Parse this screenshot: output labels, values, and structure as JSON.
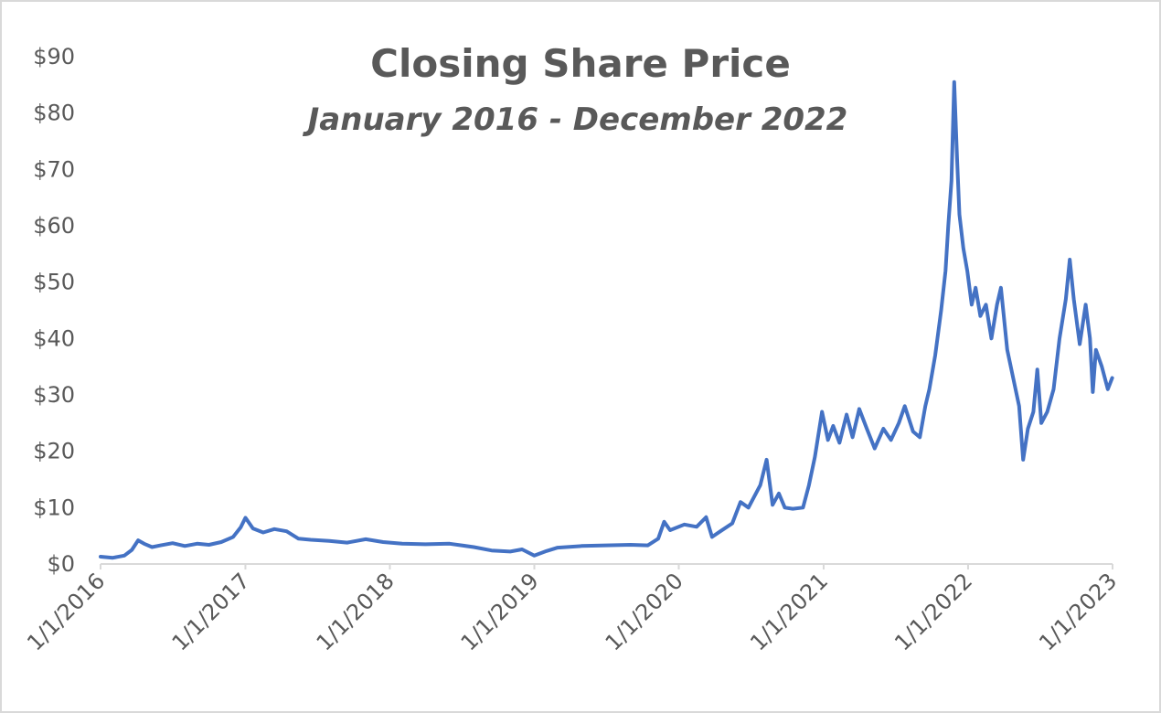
{
  "chart_data": {
    "type": "line",
    "title": "Closing Share Price",
    "subtitle": "January 2016 - December 2022",
    "xlabel": "",
    "ylabel": "",
    "ylim": [
      0,
      90
    ],
    "y_ticks": [
      "$0",
      "$10",
      "$20",
      "$30",
      "$40",
      "$50",
      "$60",
      "$70",
      "$80",
      "$90"
    ],
    "x_ticks": [
      "1/1/2016",
      "1/1/2017",
      "1/1/2018",
      "1/1/2019",
      "1/1/2020",
      "1/1/2021",
      "1/1/2022",
      "1/1/2023"
    ],
    "xlim": [
      "2016-01-01",
      "2023-01-01"
    ],
    "grid": false,
    "legend": "none",
    "color": "#4472c4",
    "series": [
      {
        "points": [
          [
            "2016-01-01",
            1.3
          ],
          [
            "2016-02-01",
            1.1
          ],
          [
            "2016-03-01",
            1.5
          ],
          [
            "2016-03-20",
            2.5
          ],
          [
            "2016-04-05",
            4.2
          ],
          [
            "2016-04-20",
            3.6
          ],
          [
            "2016-05-10",
            3.0
          ],
          [
            "2016-06-01",
            3.3
          ],
          [
            "2016-07-01",
            3.7
          ],
          [
            "2016-08-01",
            3.2
          ],
          [
            "2016-09-01",
            3.6
          ],
          [
            "2016-10-01",
            3.4
          ],
          [
            "2016-11-01",
            3.9
          ],
          [
            "2016-12-01",
            4.8
          ],
          [
            "2016-12-20",
            6.5
          ],
          [
            "2017-01-01",
            8.2
          ],
          [
            "2017-01-20",
            6.3
          ],
          [
            "2017-02-15",
            5.6
          ],
          [
            "2017-03-15",
            6.2
          ],
          [
            "2017-04-15",
            5.8
          ],
          [
            "2017-05-15",
            4.5
          ],
          [
            "2017-06-15",
            4.3
          ],
          [
            "2017-08-01",
            4.1
          ],
          [
            "2017-09-15",
            3.8
          ],
          [
            "2017-11-01",
            4.4
          ],
          [
            "2017-12-15",
            3.9
          ],
          [
            "2018-02-01",
            3.6
          ],
          [
            "2018-04-01",
            3.5
          ],
          [
            "2018-06-01",
            3.6
          ],
          [
            "2018-08-01",
            3.0
          ],
          [
            "2018-09-15",
            2.4
          ],
          [
            "2018-11-01",
            2.2
          ],
          [
            "2018-12-01",
            2.6
          ],
          [
            "2019-01-01",
            1.5
          ],
          [
            "2019-02-01",
            2.3
          ],
          [
            "2019-03-01",
            2.9
          ],
          [
            "2019-05-01",
            3.2
          ],
          [
            "2019-07-01",
            3.3
          ],
          [
            "2019-09-01",
            3.4
          ],
          [
            "2019-10-15",
            3.3
          ],
          [
            "2019-11-10",
            4.5
          ],
          [
            "2019-11-25",
            7.5
          ],
          [
            "2019-12-10",
            6.0
          ],
          [
            "2020-01-15",
            7.0
          ],
          [
            "2020-02-15",
            6.6
          ],
          [
            "2020-03-10",
            8.3
          ],
          [
            "2020-03-25",
            4.8
          ],
          [
            "2020-04-15",
            5.8
          ],
          [
            "2020-05-15",
            7.2
          ],
          [
            "2020-06-05",
            11.0
          ],
          [
            "2020-06-25",
            10.0
          ],
          [
            "2020-07-25",
            14.0
          ],
          [
            "2020-08-10",
            18.5
          ],
          [
            "2020-08-25",
            10.5
          ],
          [
            "2020-09-10",
            12.5
          ],
          [
            "2020-09-25",
            10.0
          ],
          [
            "2020-10-15",
            9.8
          ],
          [
            "2020-11-10",
            10.0
          ],
          [
            "2020-11-25",
            14.0
          ],
          [
            "2020-12-10",
            19.0
          ],
          [
            "2020-12-28",
            27.0
          ],
          [
            "2021-01-12",
            22.0
          ],
          [
            "2021-01-25",
            24.5
          ],
          [
            "2021-02-10",
            21.5
          ],
          [
            "2021-02-28",
            26.5
          ],
          [
            "2021-03-15",
            22.5
          ],
          [
            "2021-04-01",
            27.5
          ],
          [
            "2021-04-20",
            24.0
          ],
          [
            "2021-05-10",
            20.5
          ],
          [
            "2021-06-01",
            24.0
          ],
          [
            "2021-06-20",
            22.0
          ],
          [
            "2021-07-10",
            25.0
          ],
          [
            "2021-07-25",
            28.0
          ],
          [
            "2021-08-15",
            23.5
          ],
          [
            "2021-09-01",
            22.5
          ],
          [
            "2021-09-15",
            28.0
          ],
          [
            "2021-09-25",
            31.0
          ],
          [
            "2021-10-10",
            37.0
          ],
          [
            "2021-10-25",
            45.0
          ],
          [
            "2021-11-05",
            52.0
          ],
          [
            "2021-11-12",
            60.0
          ],
          [
            "2021-11-20",
            68.0
          ],
          [
            "2021-11-27",
            85.5
          ],
          [
            "2021-12-04",
            72.0
          ],
          [
            "2021-12-10",
            62.0
          ],
          [
            "2021-12-20",
            56.0
          ],
          [
            "2021-12-30",
            52.0
          ],
          [
            "2022-01-10",
            46.0
          ],
          [
            "2022-01-20",
            49.0
          ],
          [
            "2022-02-01",
            44.0
          ],
          [
            "2022-02-15",
            46.0
          ],
          [
            "2022-03-01",
            40.0
          ],
          [
            "2022-03-15",
            46.0
          ],
          [
            "2022-03-25",
            49.0
          ],
          [
            "2022-04-10",
            38.0
          ],
          [
            "2022-04-25",
            33.0
          ],
          [
            "2022-05-10",
            28.0
          ],
          [
            "2022-05-20",
            18.5
          ],
          [
            "2022-06-01",
            24.0
          ],
          [
            "2022-06-15",
            27.0
          ],
          [
            "2022-06-25",
            34.5
          ],
          [
            "2022-07-05",
            25.0
          ],
          [
            "2022-07-20",
            27.0
          ],
          [
            "2022-08-05",
            31.0
          ],
          [
            "2022-08-20",
            40.0
          ],
          [
            "2022-09-05",
            47.0
          ],
          [
            "2022-09-15",
            54.0
          ],
          [
            "2022-09-25",
            47.0
          ],
          [
            "2022-10-10",
            39.0
          ],
          [
            "2022-10-25",
            46.0
          ],
          [
            "2022-11-05",
            40.0
          ],
          [
            "2022-11-12",
            30.5
          ],
          [
            "2022-11-20",
            38.0
          ],
          [
            "2022-12-05",
            35.0
          ],
          [
            "2022-12-20",
            31.0
          ],
          [
            "2022-12-31",
            33.0
          ]
        ]
      }
    ]
  }
}
